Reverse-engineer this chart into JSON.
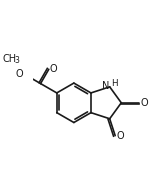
{
  "bg_color": "#ffffff",
  "line_color": "#1a1a1a",
  "line_width": 1.2,
  "font_size": 7.0,
  "sub_font_size": 5.5,
  "figsize": [
    1.49,
    1.8
  ],
  "dpi": 100,
  "xlim": [
    0,
    10
  ],
  "ylim": [
    0,
    12
  ]
}
